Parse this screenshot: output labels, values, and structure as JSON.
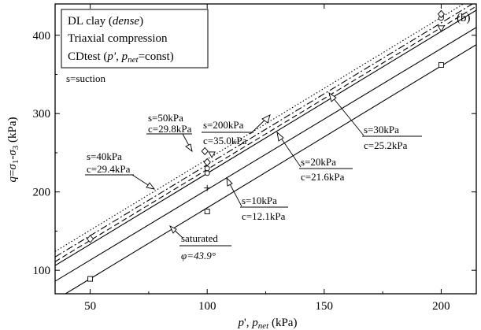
{
  "chart_data": {
    "type": "scatter",
    "panel_label": "(b)",
    "xlabel": "p', p_net (kPa)",
    "ylabel": "q=σ1-σ3 (kPa)",
    "xlim": [
      35,
      215
    ],
    "ylim": [
      70,
      440
    ],
    "xticks": [
      50,
      100,
      150,
      200
    ],
    "yticks": [
      100,
      200,
      300,
      400
    ],
    "legend_lines": [
      "DL clay (dense)",
      "Triaxial compression",
      "CDtest (p', p_net=const)"
    ],
    "note": "s=suction",
    "series": [
      {
        "suction_label": "saturated",
        "param_label": "φ=43.9°",
        "marker": "square",
        "line": "solid",
        "points": [
          [
            50,
            89
          ],
          [
            100,
            175
          ],
          [
            200,
            362
          ]
        ]
      },
      {
        "suction_label": "s=10kPa",
        "param_label": "c=12.1kPa",
        "marker": "plus",
        "line": "solid",
        "points": [
          [
            100,
            205
          ]
        ]
      },
      {
        "suction_label": "s=20kPa",
        "param_label": "c=21.6kPa",
        "marker": "circle",
        "line": "solid",
        "points": [
          [
            100,
            224
          ],
          [
            200,
            422
          ]
        ]
      },
      {
        "suction_label": "s=30kPa",
        "param_label": "c=25.2kPa",
        "marker": "circle",
        "line": "dashed",
        "points": [
          [
            100,
            230
          ]
        ]
      },
      {
        "suction_label": "s=40kPa",
        "param_label": "c=29.4kPa",
        "marker": "diamond",
        "line": "dash-dot",
        "points": [
          [
            50,
            140
          ],
          [
            100,
            238
          ]
        ]
      },
      {
        "suction_label": "s=50kPa",
        "param_label": "c=29.8kPa",
        "marker": "triangle-down",
        "line": "dash-dot",
        "points": [
          [
            102,
            248
          ],
          [
            200,
            409
          ]
        ]
      },
      {
        "suction_label": "s=200kPa",
        "param_label": "c=35.0kPa",
        "marker": "diamond",
        "line": "dotted",
        "points": [
          [
            99,
            252
          ],
          [
            200,
            427
          ]
        ]
      }
    ],
    "lines": [
      {
        "style": "solid",
        "y_at_x": [
          [
            35,
            62
          ],
          [
            215,
            388
          ]
        ]
      },
      {
        "style": "solid",
        "y_at_x": [
          [
            35,
            86
          ],
          [
            215,
            410
          ]
        ]
      },
      {
        "style": "solid",
        "y_at_x": [
          [
            35,
            106
          ],
          [
            215,
            432
          ]
        ]
      },
      {
        "style": "dashed",
        "y_at_x": [
          [
            35,
            111
          ],
          [
            215,
            437
          ]
        ]
      },
      {
        "style": "dash-dot",
        "y_at_x": [
          [
            35,
            117
          ],
          [
            215,
            443
          ]
        ]
      },
      {
        "style": "dotted",
        "y_at_x": [
          [
            35,
            124
          ],
          [
            215,
            450
          ]
        ]
      }
    ]
  }
}
